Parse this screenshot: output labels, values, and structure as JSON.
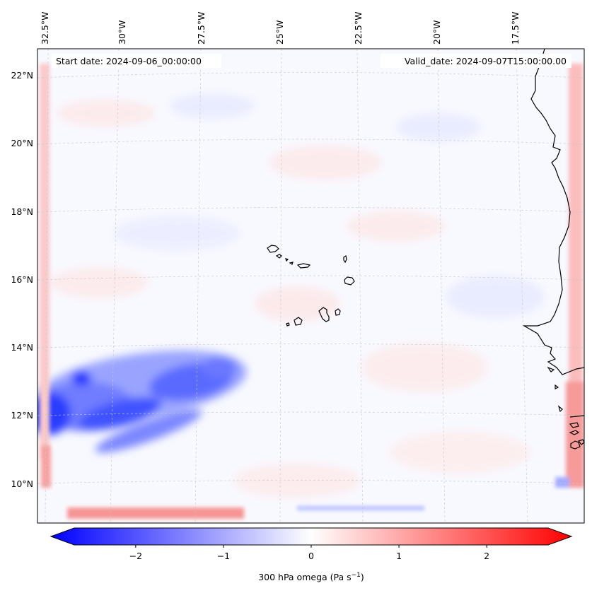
{
  "map": {
    "start_date_label": "Start date: 2024-09-06_00:00:00",
    "valid_date_label": "Valid_date: 2024-09-07T15:00:00.00",
    "lon_labels": [
      "32.5°W",
      "30°W",
      "27.5°W",
      "25°W",
      "22.5°W",
      "20°W",
      "17.5°W"
    ],
    "lat_labels": [
      "22°N",
      "20°N",
      "18°N",
      "16°N",
      "14°N",
      "12°N",
      "10°N"
    ],
    "field_name": "300 hPa omega",
    "field_units": "Pa s",
    "field_units_exponent": "−1"
  },
  "colorbar": {
    "min": -2.7,
    "max": 2.7,
    "tick_values": [
      -2,
      -1,
      0,
      1,
      2
    ],
    "tick_labels": [
      "−2",
      "−1",
      "0",
      "1",
      "2"
    ],
    "negative_color": "#0000ff",
    "zero_color": "#ffffff",
    "positive_color": "#ff0000",
    "label": "300 hPa omega (Pa s"
  },
  "colors": {
    "background_tint": "#f8f9ff",
    "coastline": "#000000",
    "gridline": "#c8c8c8"
  }
}
